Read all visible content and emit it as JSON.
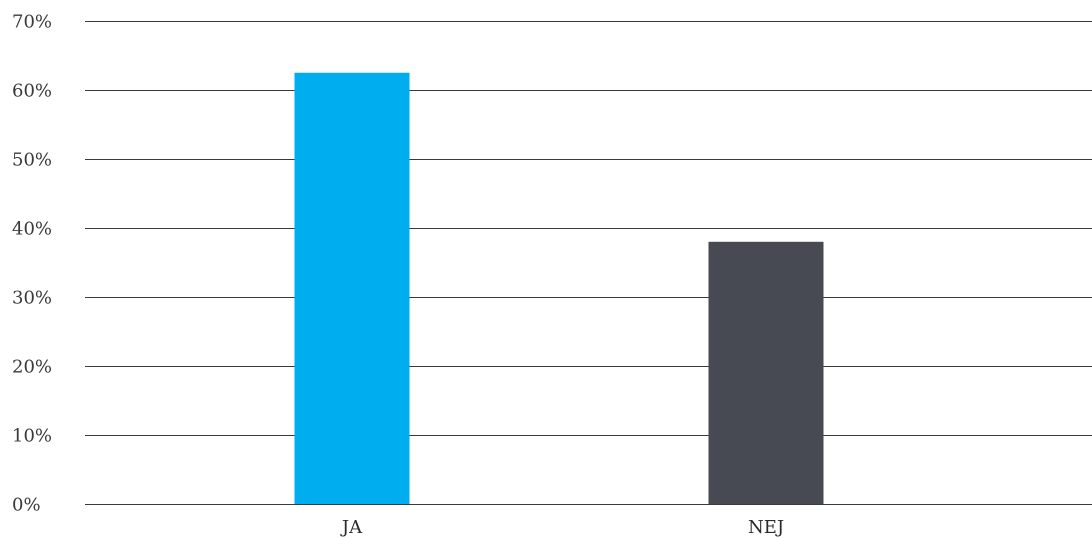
{
  "chart_data": {
    "type": "bar",
    "categories": [
      "JA",
      "NEJ"
    ],
    "values": [
      62.5,
      38
    ],
    "colors": [
      "#00AEEF",
      "#474A52"
    ],
    "y_ticks": [
      "0%",
      "10%",
      "20%",
      "30%",
      "40%",
      "50%",
      "60%",
      "70%"
    ],
    "ylim": [
      0,
      70
    ],
    "grid": true,
    "legend": "none",
    "title": "",
    "xlabel": "",
    "ylabel": ""
  }
}
